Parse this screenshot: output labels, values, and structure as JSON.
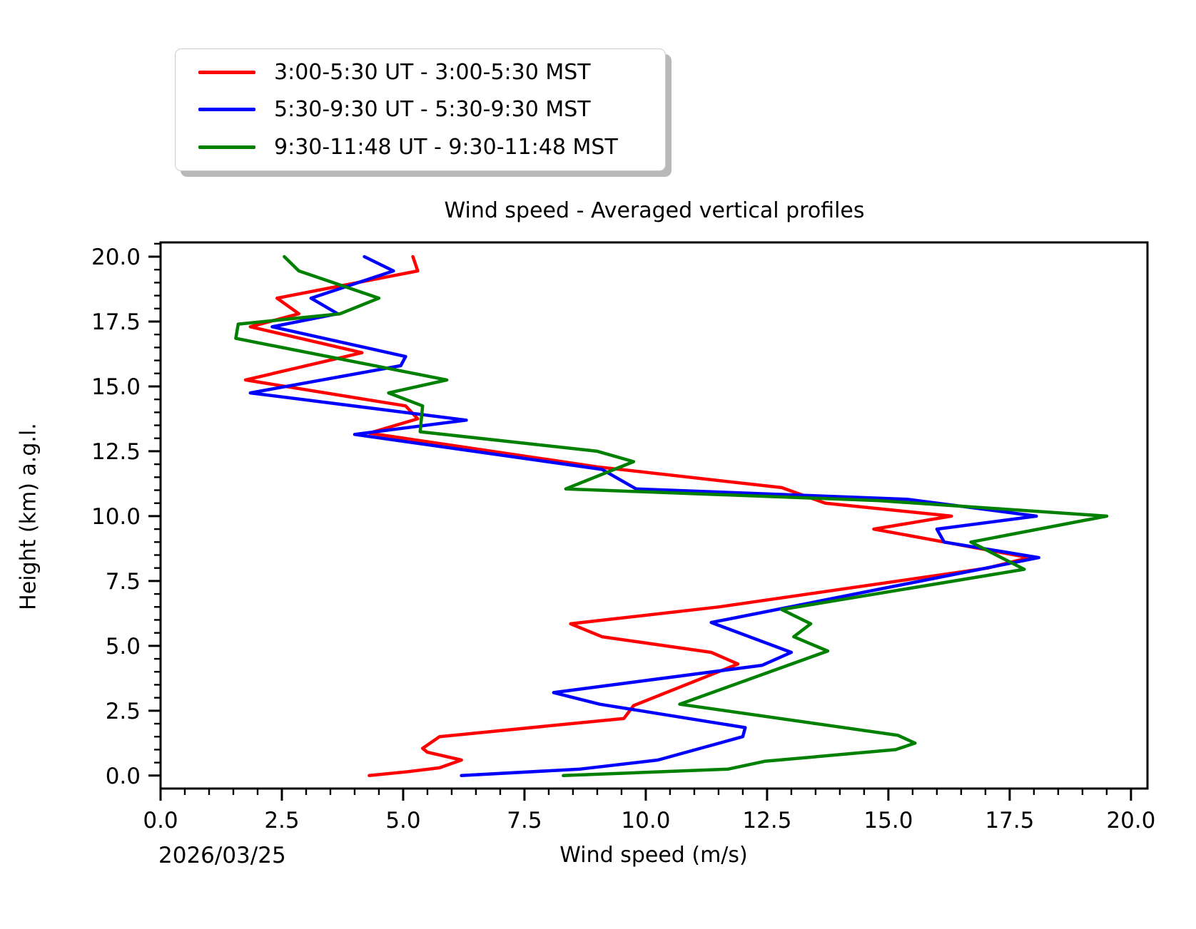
{
  "figure": {
    "title": "Wind speed - Averaged vertical profiles",
    "date_label": "2026/03/25"
  },
  "chart_data": {
    "type": "line",
    "title": "Wind speed - Averaged vertical profiles",
    "xlabel": "Wind speed (m/s)",
    "ylabel": "Height (km) a.g.l.",
    "xlim": [
      0,
      20.34
    ],
    "ylim": [
      -0.5,
      20.55
    ],
    "xticks": [
      0.0,
      2.5,
      5.0,
      7.5,
      10.0,
      12.5,
      15.0,
      17.5,
      20.0
    ],
    "yticks": [
      0.0,
      2.5,
      5.0,
      7.5,
      10.0,
      12.5,
      15.0,
      17.5,
      20.0
    ],
    "minor_tick_step": 0.5,
    "grid": false,
    "legend_position": "upper left, above axes",
    "point_format": "[wind_speed_m_s, height_km]",
    "series": [
      {
        "name": "3:00-5:30 UT - 3:00-5:30 MST",
        "color": "#ff0000",
        "points_xy": [
          [
            5.2,
            20.0
          ],
          [
            5.3,
            19.45
          ],
          [
            2.4,
            18.4
          ],
          [
            2.85,
            17.8
          ],
          [
            1.85,
            17.3
          ],
          [
            4.15,
            16.3
          ],
          [
            1.75,
            15.25
          ],
          [
            5.05,
            14.25
          ],
          [
            5.3,
            13.75
          ],
          [
            4.3,
            13.2
          ],
          [
            9.0,
            11.9
          ],
          [
            12.8,
            11.1
          ],
          [
            13.7,
            10.5
          ],
          [
            16.3,
            10.0
          ],
          [
            14.7,
            9.5
          ],
          [
            17.9,
            8.4
          ],
          [
            17.05,
            8.0
          ],
          [
            11.5,
            6.5
          ],
          [
            8.45,
            5.85
          ],
          [
            9.1,
            5.35
          ],
          [
            11.35,
            4.75
          ],
          [
            11.9,
            4.3
          ],
          [
            9.75,
            2.7
          ],
          [
            9.55,
            2.2
          ],
          [
            5.75,
            1.5
          ],
          [
            5.4,
            1.05
          ],
          [
            5.5,
            0.9
          ],
          [
            6.2,
            0.6
          ],
          [
            5.75,
            0.3
          ],
          [
            5.1,
            0.15
          ],
          [
            4.3,
            0.0
          ]
        ]
      },
      {
        "name": "5:30-9:30 UT - 5:30-9:30 MST",
        "color": "#0000ff",
        "points_xy": [
          [
            4.2,
            20.0
          ],
          [
            4.8,
            19.45
          ],
          [
            3.1,
            18.4
          ],
          [
            3.65,
            17.8
          ],
          [
            2.3,
            17.3
          ],
          [
            5.05,
            16.15
          ],
          [
            4.95,
            15.8
          ],
          [
            1.85,
            14.75
          ],
          [
            6.3,
            13.7
          ],
          [
            4.0,
            13.15
          ],
          [
            9.1,
            11.8
          ],
          [
            9.8,
            11.05
          ],
          [
            15.4,
            10.65
          ],
          [
            18.05,
            10.0
          ],
          [
            16.0,
            9.5
          ],
          [
            16.15,
            9.0
          ],
          [
            18.1,
            8.4
          ],
          [
            11.35,
            5.9
          ],
          [
            13.0,
            4.75
          ],
          [
            12.4,
            4.25
          ],
          [
            8.1,
            3.2
          ],
          [
            9.05,
            2.75
          ],
          [
            12.05,
            1.85
          ],
          [
            12.0,
            1.5
          ],
          [
            10.25,
            0.6
          ],
          [
            8.65,
            0.25
          ],
          [
            6.2,
            0.0
          ]
        ]
      },
      {
        "name": "9:30-11:48 UT - 9:30-11:48 MST",
        "color": "#008000",
        "points_xy": [
          [
            2.55,
            20.0
          ],
          [
            2.85,
            19.45
          ],
          [
            4.5,
            18.4
          ],
          [
            3.7,
            17.8
          ],
          [
            1.6,
            17.4
          ],
          [
            1.55,
            16.85
          ],
          [
            5.9,
            15.25
          ],
          [
            4.7,
            14.75
          ],
          [
            5.4,
            14.25
          ],
          [
            5.35,
            13.25
          ],
          [
            9.0,
            12.5
          ],
          [
            9.75,
            12.1
          ],
          [
            8.35,
            11.05
          ],
          [
            14.8,
            10.6
          ],
          [
            19.5,
            10.0
          ],
          [
            16.7,
            9.0
          ],
          [
            17.8,
            7.95
          ],
          [
            12.8,
            6.4
          ],
          [
            13.4,
            5.85
          ],
          [
            13.05,
            5.35
          ],
          [
            13.75,
            4.8
          ],
          [
            10.7,
            2.75
          ],
          [
            15.2,
            1.55
          ],
          [
            15.55,
            1.25
          ],
          [
            15.15,
            1.0
          ],
          [
            12.45,
            0.55
          ],
          [
            11.7,
            0.25
          ],
          [
            8.3,
            0.0
          ]
        ]
      }
    ]
  }
}
